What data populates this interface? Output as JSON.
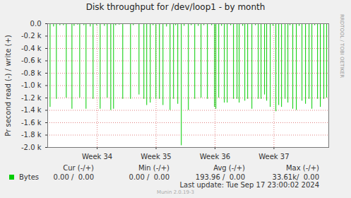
{
  "chart_data": {
    "type": "bar",
    "title": "Disk throughput for /dev/loop1 - by month",
    "y_label": "Pr second read (-) / write (+)",
    "x": [
      33.701,
      33.76,
      33.808,
      33.868,
      33.928,
      33.976,
      34.072,
      34.108,
      34.168,
      34.204,
      34.275,
      34.311,
      34.383,
      34.431,
      34.491,
      34.551,
      34.623,
      34.671,
      34.731,
      34.778,
      34.814,
      34.874,
      34.934,
      35.066,
      35.114,
      35.21,
      35.293,
      35.341,
      35.401,
      35.449,
      35.497,
      35.557,
      35.617,
      35.677,
      35.737,
      35.796,
      35.832,
      35.868,
      35.928,
      35.976,
      36.048,
      36.096,
      36.156,
      36.216,
      36.263,
      36.311,
      36.371,
      36.443,
      36.491,
      36.515,
      36.563,
      36.611,
      36.659,
      36.707,
      36.766,
      36.814,
      36.874,
      36.91,
      36.97,
      37.006,
      37.054,
      37.126,
      37.186,
      37.234,
      37.281,
      37.341,
      37.377,
      37.437,
      37.485,
      37.533,
      37.581,
      37.629,
      37.689,
      37.737,
      37.772,
      37.82,
      37.88,
      37.928,
      37.976,
      38.036,
      38.096,
      38.144,
      38.192,
      38.24,
      38.287,
      38.347,
      38.395
    ],
    "series": [
      {
        "name": "Bytes",
        "color": "#00cc00",
        "values": [
          -1350,
          -50,
          -1220,
          -30,
          -30,
          -1200,
          -1380,
          -40,
          -20,
          -1200,
          -30,
          -1380,
          -50,
          -1220,
          -30,
          -1380,
          -40,
          -1200,
          -1400,
          -1380,
          -30,
          -20,
          -1220,
          -1220,
          -30,
          -1150,
          -1220,
          -1320,
          -1280,
          -30,
          -1220,
          -1220,
          -1320,
          -50,
          -1400,
          -1220,
          -30,
          -1300,
          -1970,
          -40,
          -1400,
          -30,
          -1220,
          -40,
          -1200,
          -30,
          -1220,
          -30,
          -1350,
          -1380,
          -1200,
          -40,
          -1280,
          -1280,
          -30,
          -1220,
          -1220,
          -1280,
          -40,
          -1250,
          -1220,
          -1380,
          -30,
          -1220,
          -1220,
          -1150,
          -1250,
          -1350,
          -40,
          -1420,
          -1320,
          -1350,
          -1220,
          -1280,
          -30,
          -1380,
          -1400,
          -40,
          -1250,
          -1300,
          -1220,
          -1380,
          -30,
          -1220,
          -1350,
          -1220,
          -1200
        ]
      }
    ],
    "xlim": [
      33.66,
      38.43
    ],
    "xticks": [
      {
        "value": 34.5,
        "label": "Week 34"
      },
      {
        "value": 35.5,
        "label": "Week 35"
      },
      {
        "value": 36.5,
        "label": "Week 36"
      },
      {
        "value": 37.5,
        "label": "Week 37"
      }
    ],
    "ylim": [
      -2000,
      0
    ],
    "yticks": [
      {
        "value": 0,
        "label": "0.0"
      },
      {
        "value": -200,
        "label": "-0.2 k"
      },
      {
        "value": -400,
        "label": "-0.4 k"
      },
      {
        "value": -600,
        "label": "-0.6 k"
      },
      {
        "value": -800,
        "label": "-0.8 k"
      },
      {
        "value": -1000,
        "label": "-1.0 k"
      },
      {
        "value": -1200,
        "label": "-1.2 k"
      },
      {
        "value": -1400,
        "label": "-1.4 k"
      },
      {
        "value": -1600,
        "label": "-1.6 k"
      },
      {
        "value": -1800,
        "label": "-1.8 k"
      },
      {
        "value": -2000,
        "label": "-2.0 k"
      }
    ],
    "grid": true,
    "summary": {
      "headers": [
        "Cur (-/+)",
        "Min (-/+)",
        "Avg (-/+)",
        "Max (-/+)"
      ],
      "rows": [
        {
          "name": "Bytes",
          "color": "#00cc00",
          "cells": [
            "0.00 /  0.00",
            "0.00 /  0.00",
            "193.96 /  0.00",
            "33.61k/  0.00"
          ]
        }
      ]
    },
    "footer": "Last update: Tue Sep 17 23:00:02 2024",
    "credit": "Munin 2.0.19-3",
    "watermark": "RRDTOOL / TOBI OETIKER"
  }
}
